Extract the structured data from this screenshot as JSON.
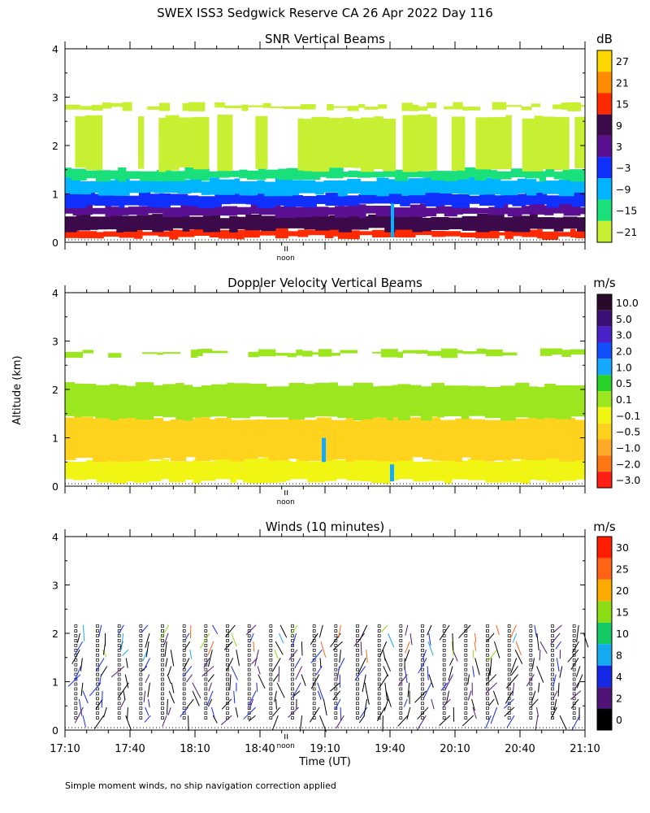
{
  "title": "SWEX ISS3 Sedgwick Reserve CA  26 Apr 2022 Day 116",
  "y_axis_label": "Altitude (km)",
  "x_axis_label": "Time (UT)",
  "footnote": "Simple moment winds, no ship navigation correction applied",
  "noon_label": "noon",
  "chart_data": [
    {
      "type": "heatmap",
      "title": "SNR Vertical Beams",
      "ylabel": "Altitude (km)",
      "ylim": [
        0,
        4
      ],
      "yticks": [
        0,
        1,
        2,
        3,
        4
      ],
      "xlim": [
        "17:10",
        "21:10"
      ],
      "colorbar": {
        "unit": "dB",
        "labels": [
          "27",
          "21",
          "15",
          "9",
          "3",
          "−3",
          "−9",
          "−15",
          "−21"
        ],
        "colors": [
          "#ffd700",
          "#ff8c00",
          "#ff2a00",
          "#3c0a4a",
          "#5a1090",
          "#1030ff",
          "#00b4ff",
          "#19e07a",
          "#c8f032"
        ]
      },
      "layers": [
        {
          "alt_start": 0.1,
          "alt_end": 0.25,
          "level": "15"
        },
        {
          "alt_start": 0.25,
          "alt_end": 0.55,
          "level": "9"
        },
        {
          "alt_start": 0.55,
          "alt_end": 0.75,
          "level": "3"
        },
        {
          "alt_start": 0.75,
          "alt_end": 1.0,
          "level": "−3"
        },
        {
          "alt_start": 1.0,
          "alt_end": 1.3,
          "level": "−9"
        },
        {
          "alt_start": 1.3,
          "alt_end": 1.5,
          "level": "−15"
        },
        {
          "alt_start": 1.5,
          "alt_end": 2.6,
          "level": "−21"
        },
        {
          "alt_start": 2.75,
          "alt_end": 2.85,
          "level": "−21"
        }
      ]
    },
    {
      "type": "heatmap",
      "title": "Doppler Velocity Vertical Beams",
      "ylabel": "Altitude (km)",
      "ylim": [
        0,
        4
      ],
      "yticks": [
        0,
        1,
        2,
        3,
        4
      ],
      "xlim": [
        "17:10",
        "21:10"
      ],
      "colorbar": {
        "unit": "m/s",
        "labels": [
          "10.0",
          "5.0",
          "3.0",
          "2.0",
          "1.0",
          "0.5",
          "0.1",
          "−0.1",
          "−0.5",
          "−1.0",
          "−2.0",
          "−3.0"
        ],
        "colors": [
          "#2a0a2a",
          "#3c1078",
          "#4a20c8",
          "#1050ff",
          "#14aaff",
          "#28d228",
          "#9be61e",
          "#f0f514",
          "#ffd21e",
          "#ffaa28",
          "#ff7814",
          "#ff1e14"
        ]
      },
      "layers": [
        {
          "alt_start": 0.1,
          "alt_end": 0.55,
          "level": "−0.1"
        },
        {
          "alt_start": 0.55,
          "alt_end": 1.4,
          "level": "−0.5"
        },
        {
          "alt_start": 1.4,
          "alt_end": 2.1,
          "level": "0.1"
        },
        {
          "alt_start": 2.7,
          "alt_end": 2.8,
          "level": "0.1"
        }
      ]
    },
    {
      "type": "scatter",
      "title": "Winds (10 minutes)",
      "ylabel": "Altitude (km)",
      "xlabel": "Time (UT)",
      "ylim": [
        0,
        4
      ],
      "yticks": [
        0,
        1,
        2,
        3,
        4
      ],
      "xlim": [
        "17:10",
        "21:10"
      ],
      "xticks": [
        "17:10",
        "17:40",
        "18:10",
        "18:40",
        "19:10",
        "19:40",
        "20:10",
        "20:40",
        "21:10"
      ],
      "colorbar": {
        "unit": "m/s",
        "labels": [
          "30",
          "25",
          "20",
          "15",
          "10",
          "8",
          "4",
          "2",
          "0"
        ],
        "colors": [
          "#ff1e00",
          "#ff6414",
          "#ffaa00",
          "#8cdc14",
          "#14c864",
          "#14aaf0",
          "#1428e6",
          "#501478",
          "#000000"
        ]
      },
      "profile_times": [
        "17:15",
        "17:25",
        "17:35",
        "17:45",
        "17:55",
        "18:05",
        "18:15",
        "18:25",
        "18:35",
        "18:45",
        "18:55",
        "19:05",
        "19:15",
        "19:25",
        "19:35",
        "19:45",
        "19:55",
        "20:05",
        "20:15",
        "20:25",
        "20:35",
        "20:45",
        "20:55",
        "21:05"
      ]
    }
  ]
}
